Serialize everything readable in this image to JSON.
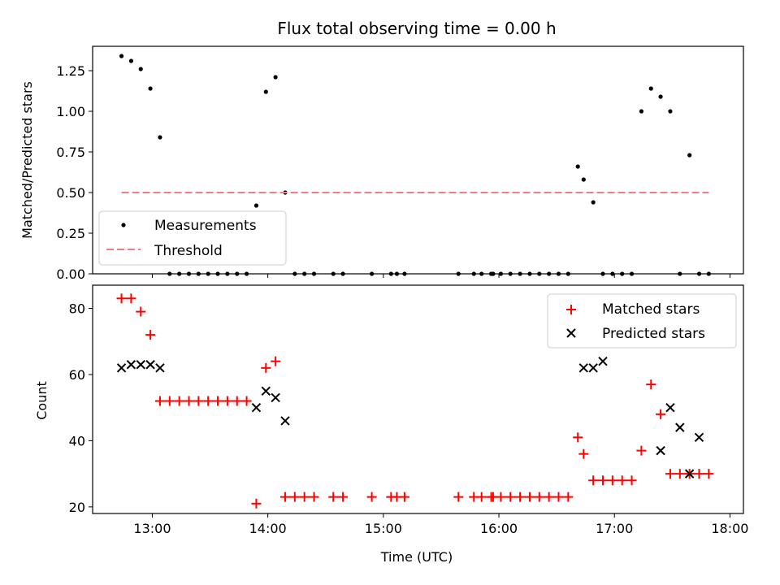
{
  "chart_data": [
    {
      "type": "scatter",
      "title": "Flux total observing time = 0.00 h",
      "xlabel": "",
      "ylabel": "Matched/Predicted stars",
      "xlim": [
        "12:29",
        "18:07"
      ],
      "ylim": [
        0,
        1.4
      ],
      "xticks": [
        "13:00",
        "14:00",
        "15:00",
        "16:00",
        "17:00",
        "18:00"
      ],
      "yticks": [
        0.0,
        0.25,
        0.5,
        0.75,
        1.0,
        1.25
      ],
      "ytick_labels": [
        "0.00",
        "0.25",
        "0.50",
        "0.75",
        "1.00",
        "1.25"
      ],
      "legend_position": "lower-left",
      "series": [
        {
          "name": "Measurements",
          "color": "#000000",
          "marker": "dot",
          "x": [
            "12:44",
            "12:49",
            "12:54",
            "12:59",
            "13:04",
            "13:09",
            "13:14",
            "13:19",
            "13:24",
            "13:29",
            "13:34",
            "13:39",
            "13:44",
            "13:49",
            "13:54",
            "13:59",
            "14:04",
            "14:09",
            "14:14",
            "14:19",
            "14:24",
            "14:34",
            "14:39",
            "14:54",
            "15:04",
            "15:07",
            "15:11",
            "15:39",
            "15:47",
            "15:51",
            "15:56",
            "15:57",
            "16:01",
            "16:06",
            "16:11",
            "16:16",
            "16:21",
            "16:26",
            "16:31",
            "16:36",
            "16:41",
            "16:44",
            "16:49",
            "16:54",
            "16:59",
            "17:04",
            "17:09",
            "17:14",
            "17:19",
            "17:24",
            "17:29",
            "17:34",
            "17:39",
            "17:44",
            "17:49"
          ],
          "y": [
            1.34,
            1.31,
            1.26,
            1.14,
            0.84,
            0.0,
            0.0,
            0.0,
            0.0,
            0.0,
            0.0,
            0.0,
            0.0,
            0.0,
            0.42,
            1.12,
            1.21,
            0.5,
            0.0,
            0.0,
            0.0,
            0.0,
            0.0,
            0.0,
            0.0,
            0.0,
            0.0,
            0.0,
            0.0,
            0.0,
            0.0,
            0.0,
            0.0,
            0.0,
            0.0,
            0.0,
            0.0,
            0.0,
            0.0,
            0.0,
            0.66,
            0.58,
            0.44,
            0.0,
            0.0,
            0.0,
            0.0,
            1.0,
            1.14,
            1.09,
            1.0,
            0.0,
            0.73,
            0.0,
            0.0
          ]
        },
        {
          "name": "Threshold",
          "color": "#f08080",
          "style": "dashed",
          "x": [
            "12:44",
            "17:49"
          ],
          "y": [
            0.5,
            0.5
          ]
        }
      ]
    },
    {
      "type": "scatter",
      "title": "",
      "xlabel": "Time (UTC)",
      "ylabel": "Count",
      "xlim": [
        "12:29",
        "18:07"
      ],
      "ylim": [
        18,
        87
      ],
      "xticks": [
        "13:00",
        "14:00",
        "15:00",
        "16:00",
        "17:00",
        "18:00"
      ],
      "yticks": [
        20,
        40,
        60,
        80
      ],
      "ytick_labels": [
        "20",
        "40",
        "60",
        "80"
      ],
      "legend_position": "upper-right",
      "series": [
        {
          "name": "Matched stars",
          "color": "#ff0000",
          "marker": "plus",
          "x": [
            "12:44",
            "12:49",
            "12:54",
            "12:59",
            "13:04",
            "13:09",
            "13:14",
            "13:19",
            "13:24",
            "13:29",
            "13:34",
            "13:39",
            "13:44",
            "13:49",
            "13:54",
            "13:59",
            "14:04",
            "14:09",
            "14:14",
            "14:19",
            "14:24",
            "14:34",
            "14:39",
            "14:54",
            "15:04",
            "15:07",
            "15:11",
            "15:39",
            "15:47",
            "15:51",
            "15:56",
            "15:57",
            "16:01",
            "16:06",
            "16:11",
            "16:16",
            "16:21",
            "16:26",
            "16:31",
            "16:36",
            "16:41",
            "16:44",
            "16:49",
            "16:54",
            "16:59",
            "17:04",
            "17:09",
            "17:14",
            "17:19",
            "17:24",
            "17:29",
            "17:34",
            "17:39",
            "17:44",
            "17:49"
          ],
          "y": [
            83,
            83,
            79,
            72,
            52,
            52,
            52,
            52,
            52,
            52,
            52,
            52,
            52,
            52,
            21,
            62,
            64,
            23,
            23,
            23,
            23,
            23,
            23,
            23,
            23,
            23,
            23,
            23,
            23,
            23,
            23,
            23,
            23,
            23,
            23,
            23,
            23,
            23,
            23,
            23,
            41,
            36,
            28,
            28,
            28,
            28,
            28,
            37,
            57,
            48,
            30,
            30,
            30,
            30,
            30
          ]
        },
        {
          "name": "Predicted stars",
          "color": "#000000",
          "marker": "x",
          "x": [
            "12:44",
            "12:49",
            "12:54",
            "12:59",
            "13:04",
            "13:54",
            "13:59",
            "14:04",
            "14:09",
            "16:44",
            "16:49",
            "16:54",
            "17:24",
            "17:29",
            "17:34",
            "17:39",
            "17:44"
          ],
          "y": [
            62,
            63,
            63,
            63,
            62,
            50,
            55,
            53,
            46,
            62,
            62,
            64,
            37,
            50,
            44,
            30,
            41
          ]
        }
      ]
    }
  ]
}
